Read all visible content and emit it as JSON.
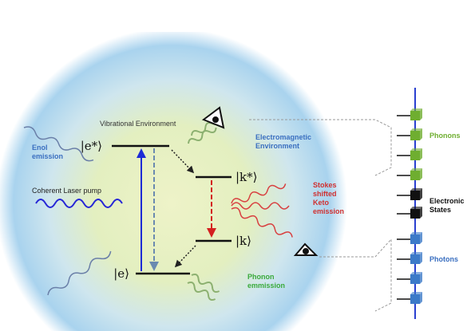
{
  "labels": {
    "vibrational_environment": "Vibrational Environment",
    "enol_emission": [
      "Enol",
      "emission"
    ],
    "coherent_laser_pump": "Coherent Laser pump",
    "electromagnetic_environment": [
      "Electromagnetic",
      "Environment"
    ],
    "stokes_keto_emission": [
      "Stokes",
      "shifted",
      "Keto",
      "emission"
    ],
    "phonon_emission": [
      "Phonon",
      "emmission"
    ]
  },
  "states": {
    "e_star": "|e*⟩",
    "k_star": "|k*⟩",
    "k": "|k⟩",
    "e": "|e⟩"
  },
  "legend": {
    "phonons": "Phonons",
    "electronic_states": [
      "Electronic",
      "States"
    ],
    "photons": "Photons"
  }
}
